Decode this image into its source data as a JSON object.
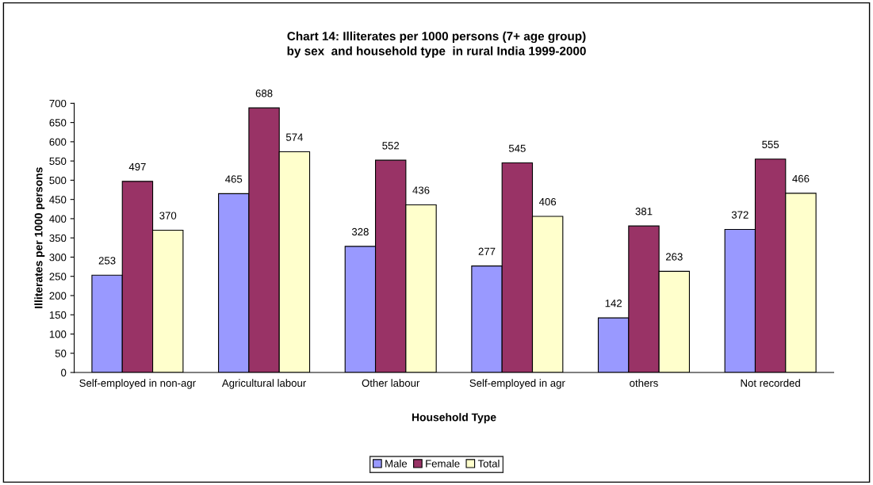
{
  "chart_data": {
    "type": "bar",
    "title": "Chart 14: Illiterates per 1000 persons (7+ age group)\nby sex  and household type  in rural India 1999-2000",
    "xlabel": "Household Type",
    "ylabel": "Illiterates per 1000 persons",
    "categories": [
      "Self-employed in non-agr",
      "Agricultural labour",
      "Other labour",
      "Self-employed in agr",
      "others",
      "Not recorded"
    ],
    "series": [
      {
        "name": "Male",
        "color": "#9999ff",
        "values": [
          253,
          465,
          328,
          277,
          142,
          372
        ]
      },
      {
        "name": "Female",
        "color": "#993366",
        "values": [
          497,
          688,
          552,
          545,
          381,
          555
        ]
      },
      {
        "name": "Total",
        "color": "#ffffcc",
        "values": [
          370,
          574,
          436,
          406,
          263,
          466
        ]
      }
    ],
    "ylim": [
      0,
      700
    ],
    "yticks": [
      0,
      50,
      100,
      150,
      200,
      250,
      300,
      350,
      400,
      450,
      500,
      550,
      600,
      650,
      700
    ],
    "grid": false,
    "legend": "bottom",
    "data_labels": true
  }
}
